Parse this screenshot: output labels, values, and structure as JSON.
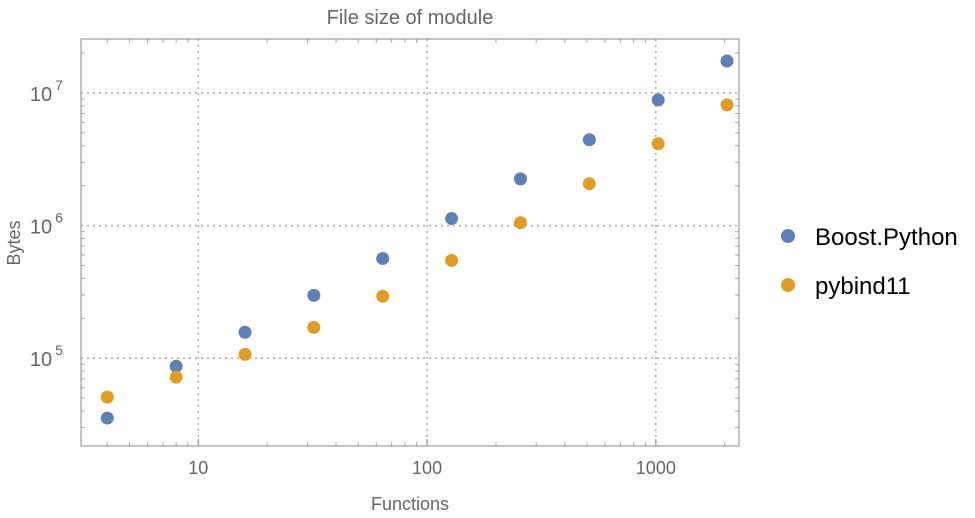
{
  "chart_data": {
    "type": "scatter",
    "title": "File size of module",
    "xlabel": "Functions",
    "ylabel": "Bytes",
    "xscale": "log",
    "yscale": "log",
    "xlim": [
      3.07,
      2310
    ],
    "ylim": [
      21800,
      25500000
    ],
    "grid": true,
    "legend_placement": "right",
    "x_ticks": [
      {
        "value": 10,
        "label": "10"
      },
      {
        "value": 100,
        "label": "100"
      },
      {
        "value": 1000,
        "label": "1000"
      }
    ],
    "y_ticks": [
      {
        "value": 100000,
        "base": "10",
        "exp": "5"
      },
      {
        "value": 1000000,
        "base": "10",
        "exp": "6"
      },
      {
        "value": 10000000,
        "base": "10",
        "exp": "7"
      }
    ],
    "x": [
      4,
      8,
      16,
      32,
      64,
      128,
      256,
      512,
      1024,
      2048
    ],
    "series": [
      {
        "name": "Boost.Python",
        "color": "#5E81B5",
        "values": [
          35400,
          87000,
          157000,
          298000,
          565000,
          1130000,
          2250000,
          4440000,
          8860000,
          17400000
        ]
      },
      {
        "name": "pybind11",
        "color": "#E19C24",
        "values": [
          50900,
          72000,
          107000,
          171000,
          293000,
          546000,
          1050000,
          2070000,
          4140000,
          8130000
        ]
      }
    ]
  }
}
